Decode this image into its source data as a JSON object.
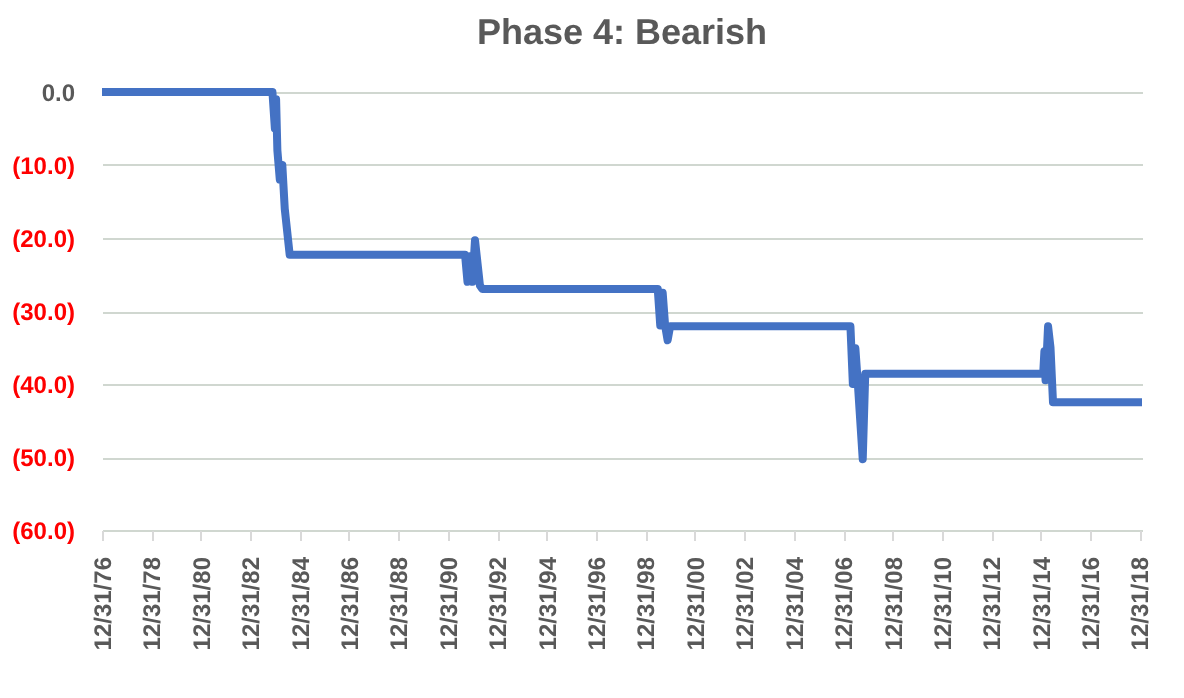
{
  "chart_data": {
    "type": "line",
    "title": "Phase 4: Bearish",
    "x": [
      "1976-12-31",
      "1983-11-25",
      "1983-12-31",
      "1984-01-18",
      "1984-02-06",
      "1984-03-13",
      "1984-04-19",
      "1984-05-25",
      "1984-08-06",
      "1991-09-12",
      "1991-10-18",
      "1991-11-24",
      "1991-12-31",
      "1992-02-06",
      "1992-04-19",
      "1992-05-25",
      "1999-07-01",
      "1999-08-07",
      "1999-09-12",
      "1999-10-18",
      "1999-11-24",
      "1999-12-31",
      "2007-04-19",
      "2007-05-25",
      "2007-07-01",
      "2007-08-07",
      "2007-10-18",
      "2007-11-24",
      "2015-02-06",
      "2015-02-24",
      "2015-03-13",
      "2015-04-19",
      "2015-05-25",
      "2015-07-01",
      "2019-02-06"
    ],
    "series": [
      {
        "color": "#4472c4",
        "values": [
          0,
          0,
          -5,
          -1,
          -8,
          -12,
          -10,
          -16,
          -22.3,
          -22.3,
          -26,
          -22.5,
          -26,
          -20.3,
          -26.5,
          -27,
          -27,
          -32,
          -27.5,
          -32,
          -34,
          -32.1,
          -32.1,
          -40,
          -35.1,
          -40,
          -50.3,
          -38.6,
          -38.6,
          -35.5,
          -39.5,
          -32.1,
          -35,
          -42.5,
          -42.5
        ]
      }
    ],
    "xlim": [
      "1976-12-31",
      "2019-02-06"
    ],
    "xticks": [
      {
        "value": "1976-12-31",
        "label": "12/31/76"
      },
      {
        "value": "1978-12-31",
        "label": "12/31/78"
      },
      {
        "value": "1980-12-31",
        "label": "12/31/80"
      },
      {
        "value": "1982-12-31",
        "label": "12/31/82"
      },
      {
        "value": "1984-12-31",
        "label": "12/31/84"
      },
      {
        "value": "1986-12-31",
        "label": "12/31/86"
      },
      {
        "value": "1988-12-31",
        "label": "12/31/88"
      },
      {
        "value": "1990-12-31",
        "label": "12/31/90"
      },
      {
        "value": "1992-12-31",
        "label": "12/31/92"
      },
      {
        "value": "1994-12-31",
        "label": "12/31/94"
      },
      {
        "value": "1996-12-31",
        "label": "12/31/96"
      },
      {
        "value": "1998-12-31",
        "label": "12/31/98"
      },
      {
        "value": "2000-12-31",
        "label": "12/31/00"
      },
      {
        "value": "2002-12-31",
        "label": "12/31/02"
      },
      {
        "value": "2004-12-31",
        "label": "12/31/04"
      },
      {
        "value": "2006-12-31",
        "label": "12/31/06"
      },
      {
        "value": "2008-12-31",
        "label": "12/31/08"
      },
      {
        "value": "2010-12-31",
        "label": "12/31/10"
      },
      {
        "value": "2012-12-31",
        "label": "12/31/12"
      },
      {
        "value": "2014-12-31",
        "label": "12/31/14"
      },
      {
        "value": "2016-12-31",
        "label": "12/31/16"
      },
      {
        "value": "2018-12-31",
        "label": "12/31/18"
      }
    ],
    "ylim": [
      -60,
      0
    ],
    "yticks": [
      {
        "value": 0,
        "label": "0.0"
      },
      {
        "value": -10,
        "label": "(10.0)"
      },
      {
        "value": -20,
        "label": "(20.0)"
      },
      {
        "value": -30,
        "label": "(30.0)"
      },
      {
        "value": -40,
        "label": "(40.0)"
      },
      {
        "value": -50,
        "label": "(50.0)"
      },
      {
        "value": -60,
        "label": "(60.0)"
      }
    ],
    "grid": "y",
    "legend": false,
    "marker": "none",
    "line_style": "solid"
  }
}
